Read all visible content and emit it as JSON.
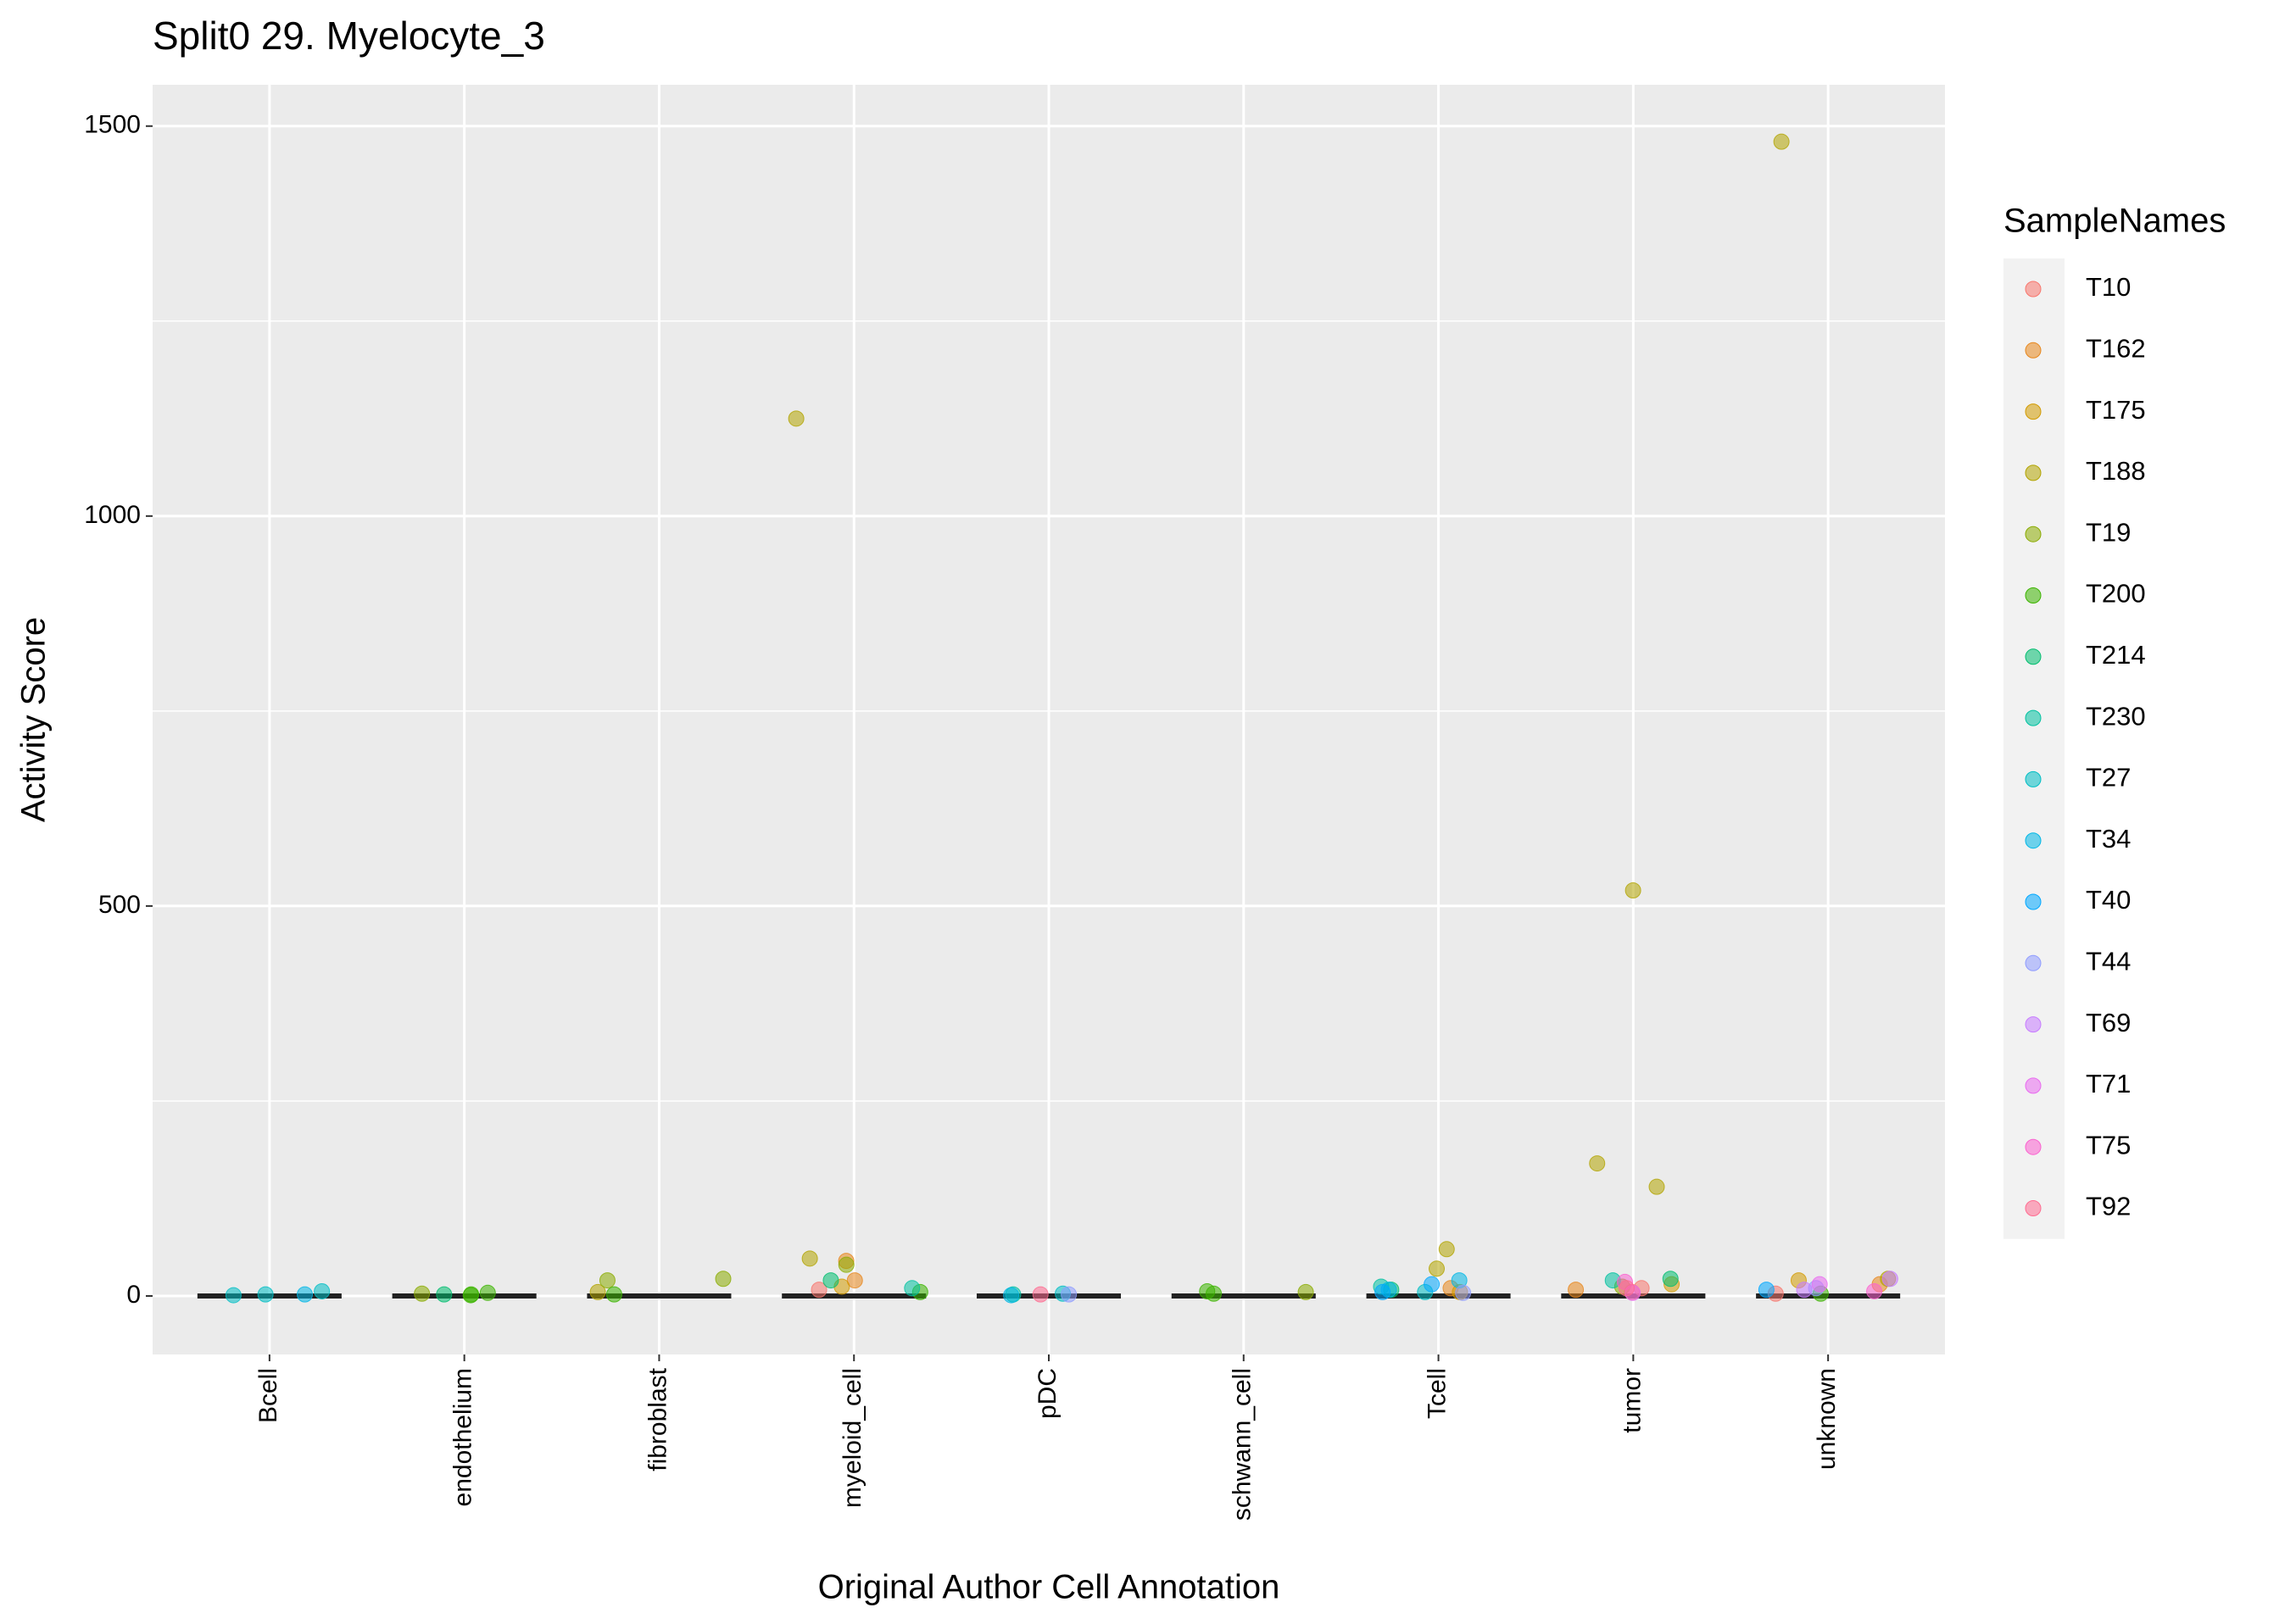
{
  "chart_data": {
    "type": "strip",
    "title": "Split0 29. Myelocyte_3",
    "x_label": "Original Author Cell Annotation",
    "y_label": "Activity Score",
    "legend_title": "SampleNames",
    "legend_position": "right",
    "categories": [
      "Bcell",
      "endothelium",
      "fibroblast",
      "myeloid_cell",
      "pDC",
      "schwann_cell",
      "Tcell",
      "tumor",
      "unknown"
    ],
    "medians": [
      0,
      0,
      0,
      0,
      0,
      0,
      0,
      0,
      0
    ],
    "ylim": [
      -75,
      1553
    ],
    "yticks": [
      0,
      500,
      1000,
      1500
    ],
    "y_minor_ticks": [
      250,
      750,
      1250
    ],
    "grid": true,
    "series": [
      {
        "name": "T10",
        "color": "#F8766D",
        "x": [
          "tumor",
          "tumor",
          "unknown",
          "myeloid_cell"
        ],
        "values": [
          5,
          10,
          3,
          8
        ]
      },
      {
        "name": "T162",
        "color": "#E7861B",
        "x": [
          "myeloid_cell",
          "myeloid_cell",
          "tumor",
          "unknown",
          "Tcell"
        ],
        "values": [
          45,
          20,
          8,
          15,
          10
        ]
      },
      {
        "name": "T175",
        "color": "#D29A00",
        "x": [
          "myeloid_cell",
          "unknown",
          "tumor",
          "Tcell"
        ],
        "values": [
          12,
          20,
          15,
          5
        ]
      },
      {
        "name": "T188",
        "color": "#B2A400",
        "x": [
          "myeloid_cell",
          "tumor",
          "tumor",
          "tumor",
          "unknown",
          "Tcell",
          "Tcell",
          "myeloid_cell",
          "fibroblast",
          "unknown"
        ],
        "values": [
          1125,
          520,
          170,
          140,
          1480,
          60,
          35,
          48,
          5,
          22
        ]
      },
      {
        "name": "T19",
        "color": "#8AAB00",
        "x": [
          "fibroblast",
          "fibroblast",
          "myeloid_cell",
          "schwann_cell",
          "endothelium",
          "tumor"
        ],
        "values": [
          22,
          20,
          40,
          5,
          3,
          12
        ]
      },
      {
        "name": "T200",
        "color": "#3CB400",
        "x": [
          "endothelium",
          "endothelium",
          "schwann_cell",
          "fibroblast",
          "myeloid_cell",
          "unknown",
          "schwann_cell",
          "endothelium"
        ],
        "values": [
          2,
          4,
          3,
          2,
          5,
          3,
          6,
          1
        ]
      },
      {
        "name": "T214",
        "color": "#00BD6F",
        "x": [
          "myeloid_cell",
          "Tcell",
          "tumor",
          "endothelium"
        ],
        "values": [
          20,
          8,
          22,
          2
        ]
      },
      {
        "name": "T230",
        "color": "#00C1A0",
        "x": [
          "tumor",
          "Tcell",
          "myeloid_cell",
          "pDC"
        ],
        "values": [
          20,
          12,
          10,
          2
        ]
      },
      {
        "name": "T27",
        "color": "#00BEC4",
        "x": [
          "Bcell",
          "Bcell",
          "Bcell",
          "pDC",
          "Tcell"
        ],
        "values": [
          6,
          2,
          1,
          3,
          5
        ]
      },
      {
        "name": "T34",
        "color": "#00B7E6",
        "x": [
          "Bcell",
          "Tcell",
          "Tcell",
          "pDC"
        ],
        "values": [
          2,
          20,
          8,
          1
        ]
      },
      {
        "name": "T40",
        "color": "#00A8FF",
        "x": [
          "Tcell",
          "Tcell",
          "unknown"
        ],
        "values": [
          15,
          5,
          8
        ]
      },
      {
        "name": "T44",
        "color": "#8F9CFF",
        "x": [
          "unknown",
          "Tcell",
          "pDC"
        ],
        "values": [
          10,
          4,
          2
        ]
      },
      {
        "name": "T69",
        "color": "#C77CFF",
        "x": [
          "unknown",
          "unknown"
        ],
        "values": [
          22,
          8
        ]
      },
      {
        "name": "T71",
        "color": "#E96BF0",
        "x": [
          "unknown",
          "tumor"
        ],
        "values": [
          15,
          4
        ]
      },
      {
        "name": "T75",
        "color": "#FB61D0",
        "x": [
          "tumor",
          "unknown"
        ],
        "values": [
          18,
          6
        ]
      },
      {
        "name": "T92",
        "color": "#FF6C91",
        "x": [
          "tumor",
          "pDC"
        ],
        "values": [
          10,
          2
        ]
      }
    ]
  }
}
